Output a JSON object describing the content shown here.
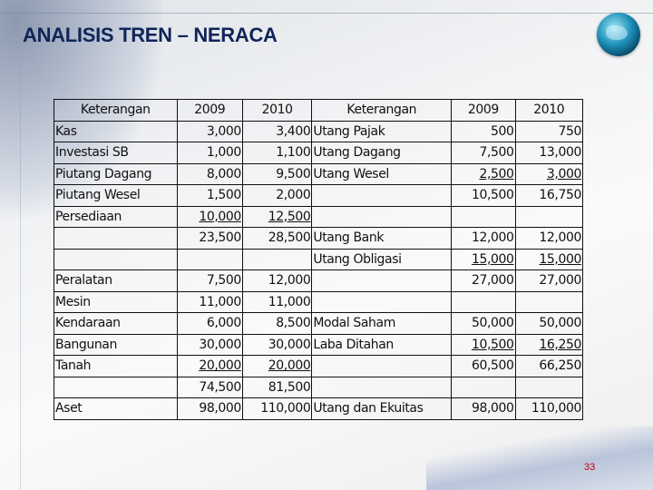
{
  "title": "ANALISIS TREN – NERACA",
  "logo": "globe-icon",
  "page_number": "33",
  "colors": {
    "title": "#0f2459",
    "page_number": "#c00000"
  },
  "table": {
    "headers": [
      "Keterangan",
      "2009",
      "2010",
      "Keterangan",
      "2009",
      "2010"
    ],
    "rows": [
      {
        "cells": [
          "Kas",
          "3,000",
          "3,400",
          "Utang Pajak",
          "500",
          "750"
        ],
        "underline": [
          false,
          false,
          false,
          false,
          false,
          false
        ]
      },
      {
        "cells": [
          "Investasi SB",
          "1,000",
          "1,100",
          "Utang Dagang",
          "7,500",
          "13,000"
        ],
        "underline": [
          false,
          false,
          false,
          false,
          false,
          false
        ]
      },
      {
        "cells": [
          "Piutang Dagang",
          "8,000",
          "9,500",
          "Utang Wesel",
          "2,500",
          "3,000"
        ],
        "underline": [
          false,
          false,
          false,
          false,
          true,
          true
        ]
      },
      {
        "cells": [
          "Piutang Wesel",
          "1,500",
          "2,000",
          "",
          "10,500",
          "16,750"
        ],
        "underline": [
          false,
          false,
          false,
          false,
          false,
          false
        ]
      },
      {
        "cells": [
          "Persediaan",
          "10,000",
          "12,500",
          "",
          "",
          ""
        ],
        "underline": [
          false,
          true,
          true,
          false,
          false,
          false
        ]
      },
      {
        "cells": [
          "",
          "23,500",
          "28,500",
          "Utang Bank",
          "12,000",
          "12,000"
        ],
        "underline": [
          false,
          false,
          false,
          false,
          false,
          false
        ]
      },
      {
        "cells": [
          "",
          "",
          "",
          "Utang Obligasi",
          "15,000",
          "15,000"
        ],
        "underline": [
          false,
          false,
          false,
          false,
          true,
          true
        ]
      },
      {
        "cells": [
          "Peralatan",
          "7,500",
          "12,000",
          "",
          "27,000",
          "27,000"
        ],
        "underline": [
          false,
          false,
          false,
          false,
          false,
          false
        ]
      },
      {
        "cells": [
          "Mesin",
          "11,000",
          "11,000",
          "",
          "",
          ""
        ],
        "underline": [
          false,
          false,
          false,
          false,
          false,
          false
        ]
      },
      {
        "cells": [
          "Kendaraan",
          "6,000",
          "8,500",
          "Modal Saham",
          "50,000",
          "50,000"
        ],
        "underline": [
          false,
          false,
          false,
          false,
          false,
          false
        ]
      },
      {
        "cells": [
          "Bangunan",
          "30,000",
          "30,000",
          "Laba Ditahan",
          "10,500",
          "16,250"
        ],
        "underline": [
          false,
          false,
          false,
          false,
          true,
          true
        ]
      },
      {
        "cells": [
          "Tanah",
          "20,000",
          "20,000",
          "",
          "60,500",
          "66,250"
        ],
        "underline": [
          false,
          true,
          true,
          false,
          false,
          false
        ]
      },
      {
        "cells": [
          "",
          "74,500",
          "81,500",
          "",
          "",
          ""
        ],
        "underline": [
          false,
          false,
          false,
          false,
          false,
          false
        ]
      },
      {
        "cells": [
          "Aset",
          "98,000",
          "110,000",
          "Utang dan Ekuitas",
          "98,000",
          "110,000"
        ],
        "underline": [
          false,
          false,
          false,
          false,
          false,
          false
        ]
      }
    ]
  }
}
